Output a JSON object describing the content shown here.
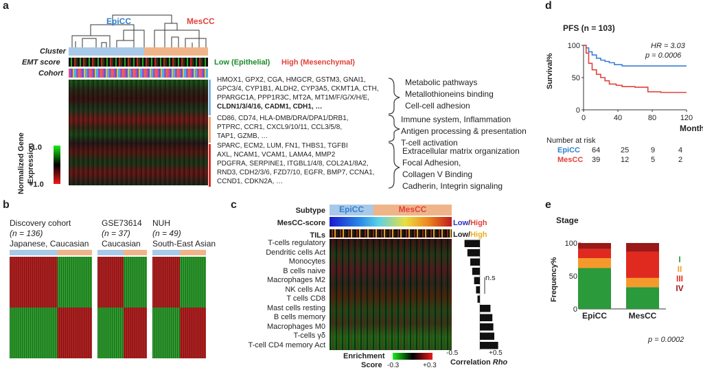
{
  "panel_a": {
    "label": "a",
    "dendro_epicc": "EpiCC",
    "dendro_mescc": "MesCC",
    "row_cluster": "Cluster",
    "row_emt": "EMT score",
    "row_cohort": "Cohort",
    "emt_low": "Low (Epithelial)",
    "emt_high": "High (Mesenchymal)",
    "ylabel_1": "Normalized Gene",
    "ylabel_2": "Expression",
    "scale_low": "-1.0",
    "scale_high": "+1.0",
    "gene_groups": [
      {
        "lines": [
          "HMOX1, GPX2, CGA, HMGCR, GSTM3, GNAI1,",
          "GPC3/4, CYP1B1, ALDH2, CYP3A5, CKMT1A, CTH,",
          "PPARGC1A, PPP1R3C, MT2A, MT1M/F/G/X/H/E,",
          "CLDN1/3/4/16, CADM1, CDH1, …"
        ],
        "pathways": [
          "Metabolic pathways",
          "Metallothioneins binding",
          "Cell-cell adhesion"
        ]
      },
      {
        "lines": [
          "CD86, CD74, HLA-DMB/DRA/DPA1/DRB1,",
          "PTPRC, CCR1, CXCL9/10/11, CCL3/5/8,",
          "TAP1, GZMB, …"
        ],
        "pathways": [
          "Immune system, Inflammation",
          "Antigen processing & presentation",
          "T-cell activation"
        ]
      },
      {
        "lines": [
          "SPARC, ECM2, LUM, FN1, THBS1, TGFBI",
          "AXL, NCAM1, VCAM1, LAMA4, MMP2",
          "PDGFRA, SERPINE1, ITGBL1/4/8, COL2A1/8A2,",
          "RND3, CDH2/3/6, FZD7/10, EGFR, BMP7, CCNA1,",
          "CCND1, CDKN2A, …"
        ],
        "pathways": [
          "Extracellular matrix organization",
          "Focal Adhesion,",
          "Collagen V Binding",
          "Cadherin, Integrin signaling"
        ]
      }
    ]
  },
  "panel_b": {
    "label": "b",
    "cohorts": [
      {
        "name": "Discovery cohort",
        "n": "(n = 136)",
        "pop": "Japanese, Caucasian"
      },
      {
        "name": "GSE73614",
        "n": "(n = 37)",
        "pop": "Caucasian"
      },
      {
        "name": "NUH",
        "n": "(n = 49)",
        "pop": "South-East Asian"
      }
    ]
  },
  "panel_c": {
    "label": "c",
    "row_subtype": "Subtype",
    "epicc": "EpiCC",
    "mescc": "MesCC",
    "row_score": "MesCC-score",
    "score_low": "Low",
    "score_high": "High",
    "row_tils": "TILs",
    "tils_low": "Low",
    "tils_high": "High",
    "cells": [
      "T-cells regulatory",
      "Dendritic cells Act",
      "Monocytes",
      "B cells naive",
      "Macrophages M2",
      "NK cells Act",
      "T cells CD8",
      "Mast cells resting",
      "B cells memory",
      "Macrophages M0",
      "T-cells γδ",
      "T-cell CD4 memory Act"
    ],
    "rho": [
      -0.32,
      -0.26,
      -0.2,
      -0.16,
      -0.12,
      -0.08,
      -0.05,
      0.22,
      0.26,
      0.28,
      0.3,
      0.38
    ],
    "ns": "n.s",
    "enrich_1": "Enrichment",
    "enrich_2": "Score",
    "enrich_min": "-0.3",
    "enrich_max": "+0.3",
    "corr_min": "-0.5",
    "corr_max": "+0.5",
    "corr_label": "Correlation",
    "corr_rho": "Rho"
  },
  "panel_d": {
    "label": "d",
    "title": "PFS (n = 103)",
    "hr": "HR = 3.03",
    "p": "p = 0.0006",
    "ylabel": "Survival%",
    "xlabel": "Month",
    "risk_title": "Number at risk",
    "chart_data": {
      "type": "line",
      "title": "PFS (n = 103)",
      "xlabel": "Month",
      "ylabel": "Survival%",
      "xlim": [
        0,
        120
      ],
      "ylim": [
        0,
        100
      ],
      "xticks": [
        0,
        40,
        80,
        120
      ],
      "yticks": [
        0,
        50,
        100
      ],
      "series": [
        {
          "name": "EpiCC",
          "color": "#3a7fd5",
          "x": [
            0,
            3,
            6,
            10,
            15,
            20,
            25,
            30,
            36,
            45,
            60,
            80,
            100,
            120
          ],
          "y": [
            100,
            96,
            90,
            85,
            80,
            77,
            75,
            73,
            70,
            68,
            68,
            68,
            68,
            68
          ]
        },
        {
          "name": "MesCC",
          "color": "#e0413a",
          "x": [
            0,
            3,
            6,
            10,
            15,
            20,
            25,
            30,
            38,
            45,
            60,
            75,
            90,
            105,
            120
          ],
          "y": [
            100,
            88,
            72,
            62,
            55,
            50,
            45,
            40,
            38,
            36,
            35,
            28,
            27,
            27,
            27
          ]
        }
      ]
    },
    "risk_rows": [
      {
        "name": "EpiCC",
        "values": [
          "64",
          "25",
          "9",
          "4"
        ]
      },
      {
        "name": "MesCC",
        "values": [
          "39",
          "12",
          "5",
          "2"
        ]
      }
    ]
  },
  "panel_e": {
    "label": "e",
    "title": "Stage",
    "ylabel": "Frequency%",
    "p": "p = 0.0002",
    "chart_data": {
      "type": "bar",
      "categories": [
        "EpiCC",
        "MesCC"
      ],
      "ylim": [
        0,
        100
      ],
      "yticks": [
        0,
        50,
        100
      ],
      "stacked": true,
      "series": [
        {
          "name": "I",
          "color": "#2a9a3a",
          "values": [
            62,
            33
          ]
        },
        {
          "name": "II",
          "color": "#f59a2a",
          "values": [
            15,
            14
          ]
        },
        {
          "name": "III",
          "color": "#e02a20",
          "values": [
            14,
            40
          ]
        },
        {
          "name": "IV",
          "color": "#9a1818",
          "values": [
            9,
            13
          ]
        }
      ]
    }
  }
}
